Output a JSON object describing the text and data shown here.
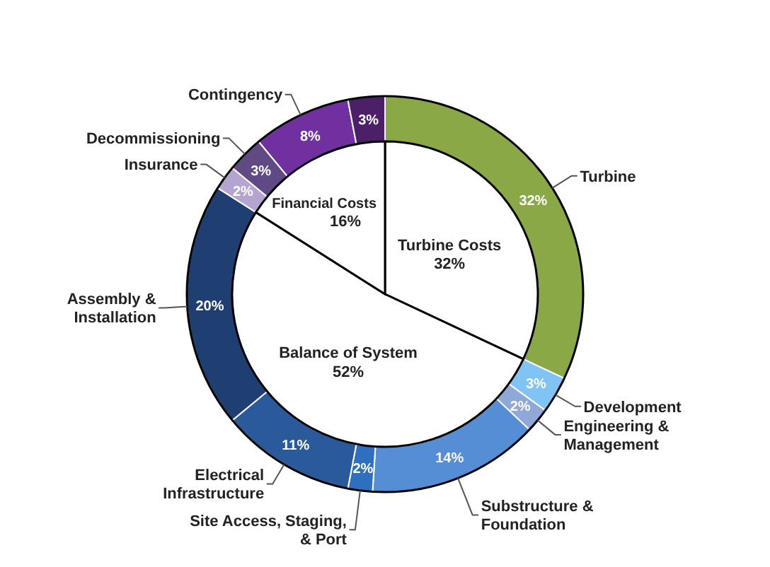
{
  "chart_data": [
    {
      "type": "donut",
      "categories": [
        "Turbine",
        "Development",
        "Engineering & Management",
        "Substructure & Foundation",
        "Site Access, Staging, & Port",
        "Electrical Infrastructure",
        "Assembly & Installation",
        "Insurance",
        "Decommissioning",
        "Contingency",
        null
      ],
      "values": [
        32,
        3,
        2,
        14,
        2,
        11,
        20,
        2,
        3,
        8,
        3
      ],
      "colors": [
        "#8aa846",
        "#7fc4f5",
        "#8fa8d8",
        "#558ed5",
        "#2e6fc0",
        "#2a5a9c",
        "#1f3f72",
        "#b4a5d0",
        "#5f4a85",
        "#7030a0",
        "#4b2068"
      ],
      "value_labels": [
        "32%",
        "3%",
        "2%",
        "14%",
        "2%",
        "11%",
        "20%",
        "2%",
        "3%",
        "8%",
        "3%"
      ]
    },
    {
      "type": "pie",
      "categories": [
        "Turbine Costs",
        "Balance of System",
        "Financial Costs"
      ],
      "values": [
        32,
        52,
        16
      ],
      "colors": [
        "#ffffff",
        "#ffffff",
        "#ffffff"
      ],
      "value_labels": [
        "32%",
        "52%",
        "16%"
      ]
    }
  ]
}
